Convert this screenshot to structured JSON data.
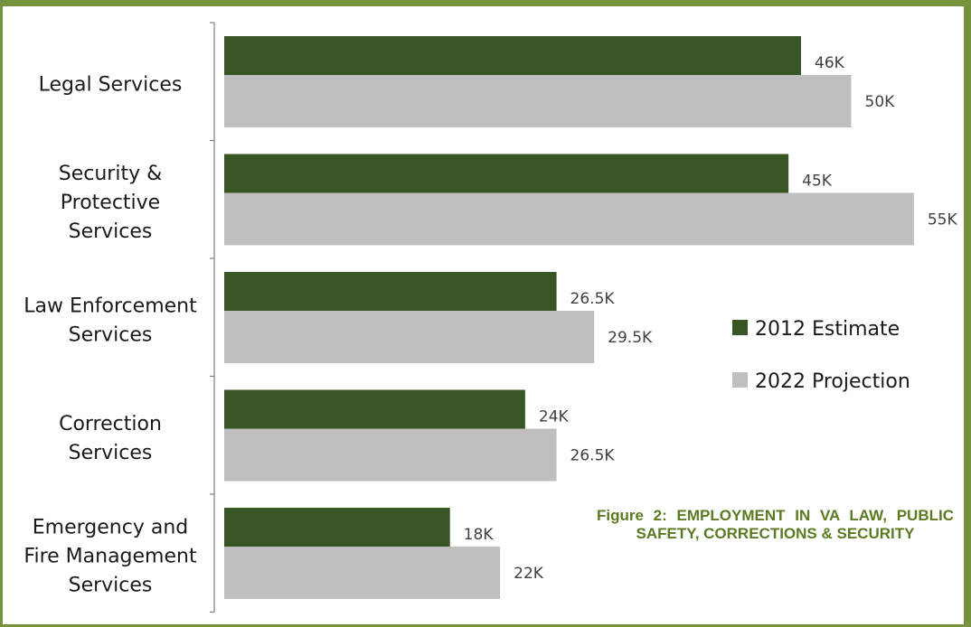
{
  "colors": {
    "frame": "#76923c",
    "title": "#5b7a22",
    "axis": "#7f7f7f"
  },
  "figure_title": "Figure 2: EMPLOYMENT IN VA LAW, PUBLIC SAFETY, CORRECTIONS & SECURITY",
  "chart_data": {
    "type": "bar",
    "orientation": "horizontal",
    "categories": [
      [
        "Legal Services"
      ],
      [
        "Security &",
        "Protective",
        "Services"
      ],
      [
        "Law Enforcement",
        "Services"
      ],
      [
        "Correction",
        "Services"
      ],
      [
        "Emergency and",
        "Fire Management",
        "Services"
      ]
    ],
    "series": [
      {
        "name": "2012 Estimate",
        "color": "#375623",
        "values": [
          46,
          45,
          26.5,
          24,
          18
        ],
        "labels": [
          "46K",
          "45K",
          "26.5K",
          "24K",
          "18K"
        ]
      },
      {
        "name": "2022 Projection",
        "color": "#bfbfbf",
        "values": [
          50,
          55,
          29.5,
          26.5,
          22
        ],
        "labels": [
          "50K",
          "55K",
          "29.5K",
          "26.5K",
          "22K"
        ]
      }
    ],
    "xlim": [
      0,
      55
    ],
    "grid": false,
    "legend_position": "right"
  }
}
